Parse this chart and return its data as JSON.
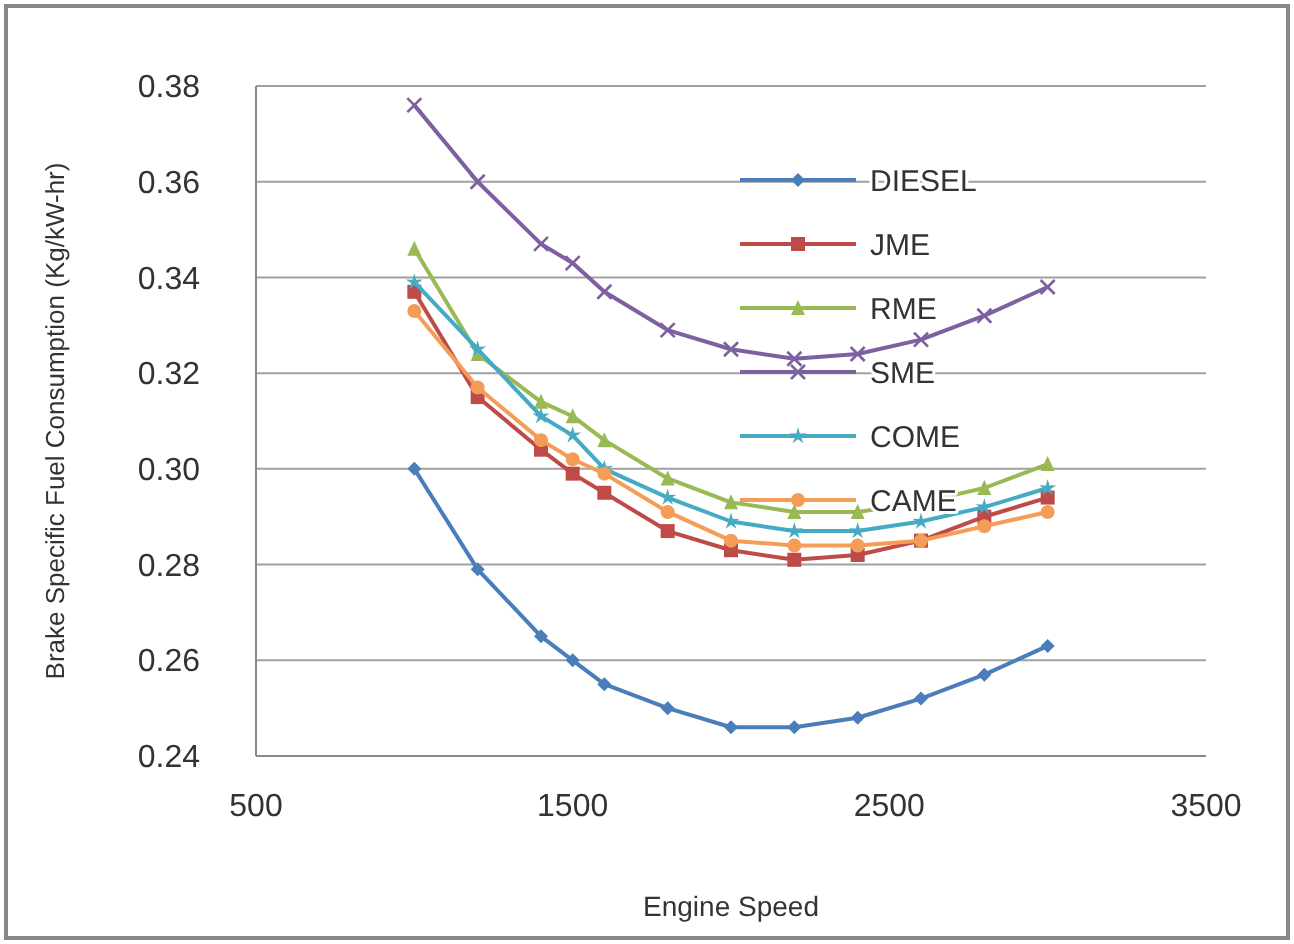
{
  "chart_data": {
    "type": "line",
    "xlabel": "Engine Speed",
    "ylabel": "Brake Specific Fuel Consumption (Kg/kW-hr)",
    "x": [
      1000,
      1200,
      1400,
      1500,
      1600,
      1800,
      2000,
      2200,
      2400,
      2600,
      2800,
      3000
    ],
    "xlim": [
      500,
      3500
    ],
    "xticks": [
      500,
      1500,
      2500,
      3500
    ],
    "ylim": [
      0.24,
      0.38
    ],
    "yticks": [
      {
        "value": 0.24,
        "label": "0.24"
      },
      {
        "value": 0.26,
        "label": "0.26"
      },
      {
        "value": 0.28,
        "label": "0.28"
      },
      {
        "value": 0.3,
        "label": "0.30"
      },
      {
        "value": 0.32,
        "label": "0.32"
      },
      {
        "value": 0.34,
        "label": "0.34"
      },
      {
        "value": 0.36,
        "label": "0.36"
      },
      {
        "value": 0.38,
        "label": "0.38"
      }
    ],
    "grid": "y",
    "legend": "top right",
    "line_style": "solid",
    "series": [
      {
        "name": "DIESEL",
        "color": "#4a7ebb",
        "marker": "diamond",
        "values": [
          0.3,
          0.279,
          0.265,
          0.26,
          0.255,
          0.25,
          0.246,
          0.246,
          0.248,
          0.252,
          0.257,
          0.263
        ]
      },
      {
        "name": "JME",
        "color": "#be4b48",
        "marker": "square",
        "values": [
          0.337,
          0.315,
          0.304,
          0.299,
          0.295,
          0.287,
          0.283,
          0.281,
          0.282,
          0.285,
          0.29,
          0.294
        ]
      },
      {
        "name": "RME",
        "color": "#98b954",
        "marker": "triangle",
        "values": [
          0.346,
          0.324,
          0.314,
          0.311,
          0.306,
          0.298,
          0.293,
          0.291,
          0.291,
          0.293,
          0.296,
          0.301
        ]
      },
      {
        "name": "SME",
        "color": "#7d60a0",
        "marker": "cross",
        "values": [
          0.376,
          0.36,
          0.347,
          0.343,
          0.337,
          0.329,
          0.325,
          0.323,
          0.324,
          0.327,
          0.332,
          0.338
        ]
      },
      {
        "name": "COME",
        "color": "#46aac5",
        "marker": "star",
        "values": [
          0.339,
          0.325,
          0.311,
          0.307,
          0.3,
          0.294,
          0.289,
          0.287,
          0.287,
          0.289,
          0.292,
          0.296
        ]
      },
      {
        "name": "CAME",
        "color": "#f59d56",
        "marker": "circle",
        "values": [
          0.333,
          0.317,
          0.306,
          0.302,
          0.299,
          0.291,
          0.285,
          0.284,
          0.284,
          0.285,
          0.288,
          0.291
        ]
      }
    ]
  }
}
